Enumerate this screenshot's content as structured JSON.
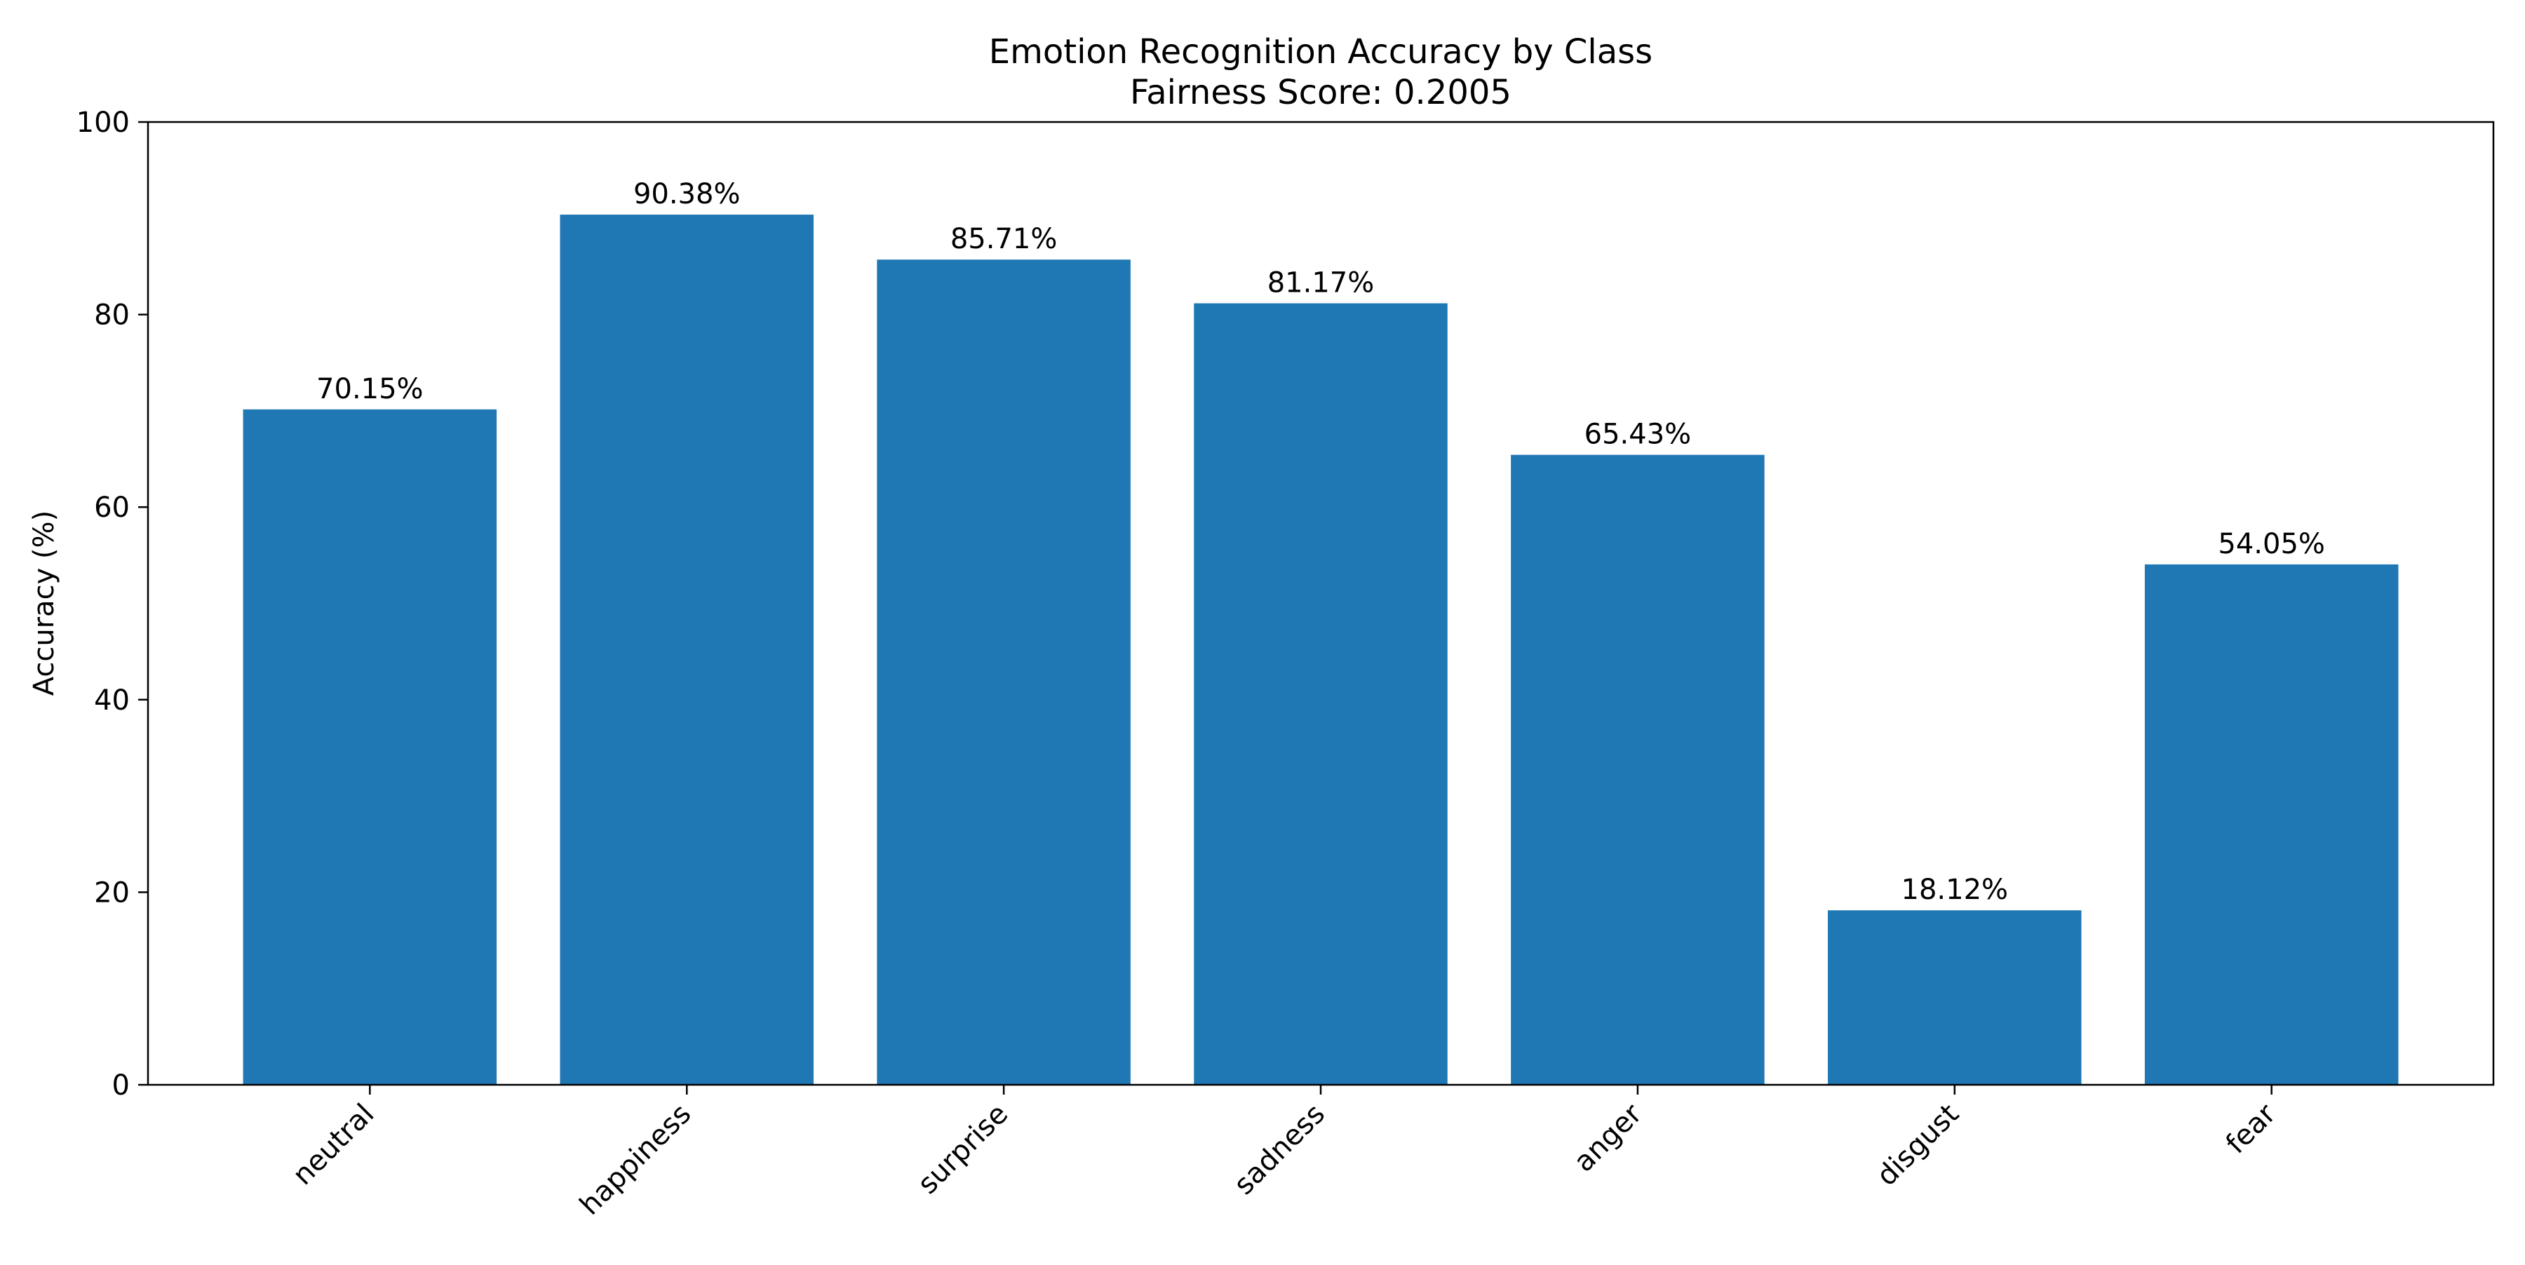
{
  "chart_data": {
    "type": "bar",
    "title": "Emotion Recognition Accuracy by Class",
    "subtitle": "Fairness Score: 0.2005",
    "xlabel": "",
    "ylabel": "Accuracy (%)",
    "ylim": [
      0,
      100
    ],
    "yticks": [
      0,
      20,
      40,
      60,
      80,
      100
    ],
    "categories": [
      "neutral",
      "happiness",
      "surprise",
      "sadness",
      "anger",
      "disgust",
      "fear"
    ],
    "values": [
      70.15,
      90.38,
      85.71,
      81.17,
      65.43,
      18.12,
      54.05
    ],
    "data_labels": [
      "70.15%",
      "90.38%",
      "85.71%",
      "81.17%",
      "65.43%",
      "18.12%",
      "54.05%"
    ],
    "bar_color": "#1f77b4",
    "grid": false,
    "legend": "none"
  }
}
